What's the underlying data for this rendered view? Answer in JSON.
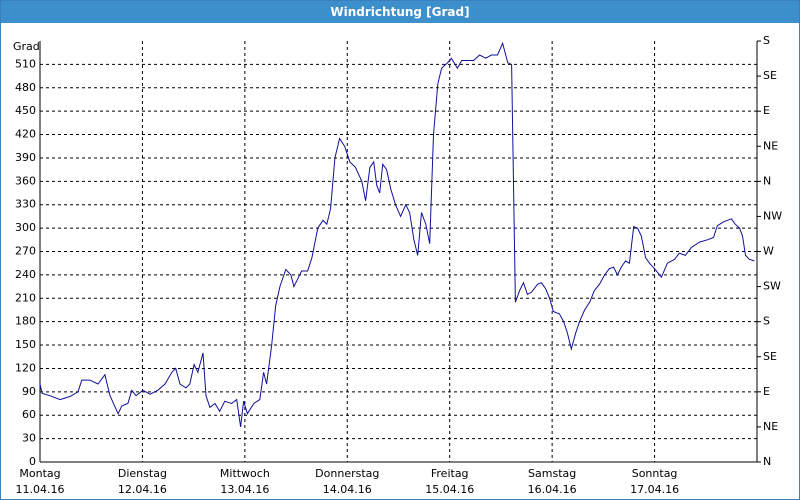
{
  "chart_data": {
    "type": "line",
    "title": "Windrichtung [Grad]",
    "y_label": "Grad",
    "xlim": [
      0,
      168
    ],
    "xticks": [
      {
        "value": 0,
        "label": "Montag"
      },
      {
        "value": 24,
        "label": "Dienstag"
      },
      {
        "value": 48,
        "label": "Mittwoch"
      },
      {
        "value": 72,
        "label": "Donnerstag"
      },
      {
        "value": 96,
        "label": "Freitag"
      },
      {
        "value": 120,
        "label": "Samstag"
      },
      {
        "value": 144,
        "label": "Sonntag"
      }
    ],
    "xtick_dates": [
      "11.04.16",
      "12.04.16",
      "13.04.16",
      "14.04.16",
      "15.04.16",
      "16.04.16",
      "17.04.16"
    ],
    "ylim": [
      0,
      540
    ],
    "yticks": [
      0,
      30,
      60,
      90,
      120,
      150,
      180,
      210,
      240,
      270,
      300,
      330,
      360,
      390,
      420,
      450,
      480,
      510
    ],
    "y2lim": [
      0,
      540
    ],
    "y2ticks": [
      {
        "value": 0,
        "label": "N"
      },
      {
        "value": 45,
        "label": "NE"
      },
      {
        "value": 90,
        "label": "E"
      },
      {
        "value": 135,
        "label": "SE"
      },
      {
        "value": 180,
        "label": "S"
      },
      {
        "value": 225,
        "label": "SW"
      },
      {
        "value": 270,
        "label": "W"
      },
      {
        "value": 315,
        "label": "NW"
      },
      {
        "value": 360,
        "label": "N"
      },
      {
        "value": 405,
        "label": "NE"
      },
      {
        "value": 450,
        "label": "E"
      },
      {
        "value": 495,
        "label": "SE"
      },
      {
        "value": 540,
        "label": "S"
      }
    ],
    "grid": true,
    "series": [
      {
        "color": "#10109a",
        "x": [
          0,
          0.5,
          2.3,
          4.7,
          7.0,
          8.9,
          9.8,
          11.7,
          13.6,
          15.2,
          16.4,
          18.3,
          19.2,
          20.6,
          21.5,
          22.5,
          24.1,
          25.8,
          27.6,
          29.3,
          30.9,
          31.8,
          32.8,
          34.2,
          35.1,
          36.1,
          37.0,
          38.2,
          38.9,
          39.8,
          41.0,
          42.1,
          43.3,
          44.9,
          46.1,
          47.0,
          47.7,
          48.6,
          50.1,
          51.5,
          52.4,
          53.1,
          54.3,
          55.2,
          56.2,
          57.6,
          58.8,
          59.5,
          60.4,
          61.3,
          62.7,
          63.7,
          65.1,
          66.3,
          67.2,
          68.1,
          69.1,
          70.2,
          71.4,
          72.6,
          73.9,
          75.4,
          76.3,
          77.3,
          78.2,
          78.9,
          79.6,
          80.3,
          81.2,
          82.2,
          83.3,
          84.5,
          85.7,
          86.6,
          87.6,
          88.5,
          89.4,
          90.4,
          91.3,
          92.2,
          93.2,
          94.1,
          95.5,
          96.4,
          97.8,
          98.8,
          100.2,
          101.6,
          103.0,
          104.4,
          105.8,
          107.2,
          108.4,
          109.6,
          110.5,
          111.4,
          112.4,
          113.3,
          114.2,
          115.2,
          116.6,
          117.5,
          118.5,
          119.4,
          120.3,
          121.7,
          122.7,
          123.6,
          124.5,
          125.5,
          126.4,
          127.6,
          128.8,
          129.9,
          131.1,
          132.3,
          133.4,
          134.4,
          135.3,
          136.2,
          137.2,
          138.1,
          139.1,
          140.0,
          140.9,
          141.9,
          142.8,
          144.0,
          145.6,
          147.0,
          148.7,
          149.8,
          151.2,
          152.6,
          154.5,
          156.4,
          157.8,
          158.7,
          160.1,
          161.1,
          162.0,
          162.9,
          163.9,
          164.6,
          165.3,
          166.2,
          167.4
        ],
        "values": [
          100,
          88,
          85,
          80,
          84,
          90,
          105,
          105,
          100,
          112,
          85,
          62,
          72,
          75,
          92,
          85,
          92,
          87,
          92,
          100,
          115,
          120,
          100,
          95,
          100,
          125,
          115,
          140,
          85,
          70,
          75,
          65,
          78,
          75,
          80,
          45,
          78,
          62,
          75,
          80,
          115,
          100,
          150,
          200,
          225,
          247,
          240,
          225,
          235,
          245,
          245,
          262,
          300,
          310,
          305,
          325,
          390,
          415,
          405,
          385,
          378,
          360,
          335,
          378,
          385,
          355,
          345,
          382,
          375,
          350,
          330,
          315,
          330,
          320,
          285,
          265,
          320,
          305,
          280,
          420,
          485,
          505,
          512,
          518,
          505,
          515,
          515,
          515,
          522,
          518,
          522,
          522,
          537,
          512,
          510,
          205,
          220,
          230,
          215,
          218,
          228,
          230,
          222,
          210,
          193,
          190,
          180,
          165,
          145,
          165,
          180,
          195,
          205,
          220,
          228,
          240,
          248,
          250,
          240,
          250,
          258,
          255,
          302,
          300,
          290,
          262,
          255,
          248,
          237,
          255,
          260,
          268,
          265,
          275,
          282,
          285,
          288,
          303,
          308,
          310,
          312,
          305,
          300,
          290,
          265,
          260,
          258
        ]
      }
    ]
  }
}
